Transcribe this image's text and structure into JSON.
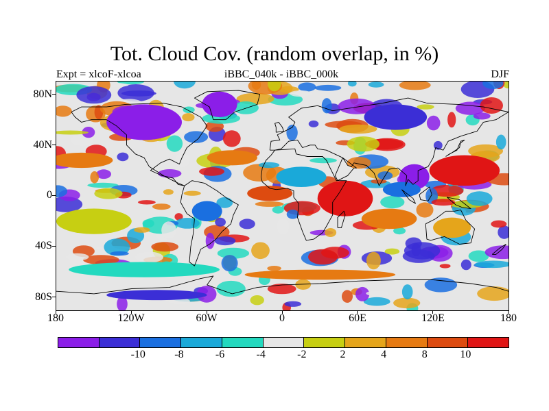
{
  "title": "Tot. Cloud Cov. (random overlap, in %)",
  "subtitle_left": "Expt = xlcoF-xlcoa",
  "subtitle_center": "iBBC_040k - iBBC_000k",
  "subtitle_right": "DJF",
  "map": {
    "projection": "cylindrical equidistant",
    "lon_range": [
      -180,
      180
    ],
    "lat_range": [
      -90,
      90
    ],
    "y_tick_labels": [
      "80N",
      "40N",
      "0",
      "40S",
      "80S"
    ],
    "y_tick_values": [
      80,
      40,
      0,
      -40,
      -80
    ],
    "x_tick_labels": [
      "180",
      "120W",
      "60W",
      "0",
      "60E",
      "120E",
      "180"
    ],
    "x_tick_values": [
      -180,
      -120,
      -60,
      0,
      60,
      120,
      180
    ]
  },
  "colorbar": {
    "colors": [
      "#8b1ee8",
      "#3b2ed6",
      "#1a6fe0",
      "#1aa9d9",
      "#23d9bf",
      "#e6e6e6",
      "#c7cf12",
      "#e5a51b",
      "#e67a12",
      "#dd4b10",
      "#e01515"
    ],
    "labels": [
      "-10",
      "-8",
      "-6",
      "-4",
      "-2",
      "2",
      "4",
      "8",
      "10"
    ],
    "label_boundaries": [
      1,
      2,
      3,
      4,
      5,
      6,
      7,
      8,
      9
    ]
  },
  "field_regions": [
    {
      "name": "north-america-negative",
      "level": 0,
      "lon": -110,
      "lat": 58,
      "rlon": 30,
      "rlat": 14
    },
    {
      "name": "greenland-negative",
      "level": 0,
      "lon": -50,
      "lat": 72,
      "rlon": 14,
      "rlat": 10
    },
    {
      "name": "siberia-negative",
      "level": 1,
      "lon": 90,
      "lat": 62,
      "rlon": 25,
      "rlat": 10
    },
    {
      "name": "east-asia-negative",
      "level": 0,
      "lon": 105,
      "lat": 15,
      "rlon": 12,
      "rlat": 10
    },
    {
      "name": "south-atlantic-positive",
      "level": 10,
      "lon": 50,
      "lat": -2,
      "rlon": 22,
      "rlat": 14
    },
    {
      "name": "west-pacific-positive",
      "level": 10,
      "lon": 145,
      "lat": 20,
      "rlon": 28,
      "rlat": 12
    },
    {
      "name": "north-pacific-orange",
      "level": 8,
      "lon": -160,
      "lat": 28,
      "rlon": 25,
      "rlat": 6
    },
    {
      "name": "atlantic-orange",
      "level": 8,
      "lon": -40,
      "lat": 30,
      "rlon": 20,
      "rlat": 6
    },
    {
      "name": "tropical-atlantic-orange",
      "level": 9,
      "lon": -10,
      "lat": 2,
      "rlon": 18,
      "rlat": 6
    },
    {
      "name": "india-orange",
      "level": 8,
      "lon": 85,
      "lat": -18,
      "rlon": 22,
      "rlat": 8
    },
    {
      "name": "amazon-negative",
      "level": 2,
      "lon": -60,
      "lat": -12,
      "rlon": 12,
      "rlat": 8
    },
    {
      "name": "africa-teal",
      "level": 3,
      "lon": 15,
      "lat": 15,
      "rlon": 20,
      "rlat": 8
    },
    {
      "name": "southern-ocean-teal",
      "level": 4,
      "lon": -110,
      "lat": -58,
      "rlon": 60,
      "rlat": 6
    },
    {
      "name": "southern-ocean-orange",
      "level": 8,
      "lon": 30,
      "lat": -62,
      "rlon": 60,
      "rlat": 4
    },
    {
      "name": "pacific-yellow",
      "level": 6,
      "lon": -150,
      "lat": -20,
      "rlon": 30,
      "rlat": 10
    },
    {
      "name": "antarctic-negative",
      "level": 1,
      "lon": -100,
      "lat": -78,
      "rlon": 40,
      "rlat": 4
    },
    {
      "name": "indian-ocean-blue",
      "level": 2,
      "lon": 95,
      "lat": 5,
      "rlon": 15,
      "rlat": 6
    },
    {
      "name": "australia-yellow",
      "level": 7,
      "lon": 135,
      "lat": -25,
      "rlon": 15,
      "rlat": 8
    }
  ],
  "coastlines": [
    {
      "name": "north-america",
      "points": [
        [
          -168,
          66
        ],
        [
          -160,
          70
        ],
        [
          -140,
          70
        ],
        [
          -125,
          72
        ],
        [
          -95,
          73
        ],
        [
          -80,
          70
        ],
        [
          -65,
          62
        ],
        [
          -60,
          55
        ],
        [
          -67,
          45
        ],
        [
          -76,
          38
        ],
        [
          -80,
          30
        ],
        [
          -82,
          25
        ],
        [
          -90,
          29
        ],
        [
          -97,
          26
        ],
        [
          -105,
          20
        ],
        [
          -96,
          16
        ],
        [
          -87,
          14
        ],
        [
          -83,
          9
        ],
        [
          -78,
          8
        ],
        [
          -85,
          11
        ],
        [
          -93,
          15
        ],
        [
          -106,
          23
        ],
        [
          -110,
          30
        ],
        [
          -117,
          33
        ],
        [
          -124,
          40
        ],
        [
          -124,
          48
        ],
        [
          -132,
          55
        ],
        [
          -140,
          60
        ],
        [
          -152,
          60
        ],
        [
          -160,
          58
        ],
        [
          -165,
          62
        ],
        [
          -168,
          66
        ]
      ]
    },
    {
      "name": "greenland",
      "points": [
        [
          -55,
          60
        ],
        [
          -45,
          60
        ],
        [
          -38,
          66
        ],
        [
          -20,
          72
        ],
        [
          -18,
          80
        ],
        [
          -35,
          83
        ],
        [
          -60,
          82
        ],
        [
          -70,
          77
        ],
        [
          -58,
          70
        ],
        [
          -55,
          60
        ]
      ]
    },
    {
      "name": "south-america",
      "points": [
        [
          -78,
          8
        ],
        [
          -72,
          12
        ],
        [
          -62,
          10
        ],
        [
          -52,
          4
        ],
        [
          -44,
          -2
        ],
        [
          -35,
          -7
        ],
        [
          -39,
          -15
        ],
        [
          -41,
          -22
        ],
        [
          -48,
          -28
        ],
        [
          -53,
          -34
        ],
        [
          -58,
          -38
        ],
        [
          -65,
          -42
        ],
        [
          -68,
          -50
        ],
        [
          -70,
          -55
        ],
        [
          -74,
          -52
        ],
        [
          -73,
          -40
        ],
        [
          -71,
          -30
        ],
        [
          -70,
          -18
        ],
        [
          -76,
          -14
        ],
        [
          -81,
          -5
        ],
        [
          -80,
          1
        ],
        [
          -78,
          8
        ]
      ]
    },
    {
      "name": "eurasia",
      "points": [
        [
          -10,
          36
        ],
        [
          -9,
          43
        ],
        [
          -2,
          44
        ],
        [
          -4,
          48
        ],
        [
          2,
          51
        ],
        [
          8,
          54
        ],
        [
          10,
          58
        ],
        [
          5,
          62
        ],
        [
          15,
          69
        ],
        [
          28,
          71
        ],
        [
          40,
          67
        ],
        [
          60,
          70
        ],
        [
          80,
          73
        ],
        [
          100,
          77
        ],
        [
          115,
          73
        ],
        [
          140,
          72
        ],
        [
          160,
          70
        ],
        [
          180,
          66
        ],
        [
          170,
          60
        ],
        [
          160,
          58
        ],
        [
          155,
          51
        ],
        [
          142,
          47
        ],
        [
          132,
          43
        ],
        [
          128,
          36
        ],
        [
          122,
          38
        ],
        [
          120,
          30
        ],
        [
          116,
          23
        ],
        [
          108,
          20
        ],
        [
          108,
          12
        ],
        [
          104,
          9
        ],
        [
          100,
          13
        ],
        [
          98,
          8
        ],
        [
          99,
          16
        ],
        [
          92,
          22
        ],
        [
          85,
          21
        ],
        [
          80,
          13
        ],
        [
          77,
          8
        ],
        [
          73,
          18
        ],
        [
          67,
          24
        ],
        [
          57,
          26
        ],
        [
          55,
          23
        ],
        [
          52,
          24
        ],
        [
          48,
          30
        ],
        [
          42,
          16
        ],
        [
          44,
          12
        ],
        [
          52,
          16
        ],
        [
          57,
          22
        ],
        [
          59,
          22
        ],
        [
          48,
          30
        ],
        [
          35,
          36
        ],
        [
          28,
          37
        ],
        [
          26,
          40
        ],
        [
          22,
          40
        ],
        [
          16,
          38
        ],
        [
          12,
          44
        ],
        [
          5,
          43
        ],
        [
          -1,
          37
        ],
        [
          -6,
          36
        ],
        [
          -10,
          36
        ]
      ]
    },
    {
      "name": "africa",
      "points": [
        [
          -6,
          36
        ],
        [
          10,
          37
        ],
        [
          11,
          33
        ],
        [
          20,
          31
        ],
        [
          32,
          31
        ],
        [
          35,
          28
        ],
        [
          43,
          12
        ],
        [
          51,
          12
        ],
        [
          45,
          2
        ],
        [
          40,
          -5
        ],
        [
          40,
          -15
        ],
        [
          35,
          -24
        ],
        [
          32,
          -29
        ],
        [
          25,
          -34
        ],
        [
          19,
          -35
        ],
        [
          16,
          -28
        ],
        [
          12,
          -17
        ],
        [
          13,
          -6
        ],
        [
          9,
          -1
        ],
        [
          9,
          4
        ],
        [
          4,
          6
        ],
        [
          -5,
          5
        ],
        [
          -10,
          6
        ],
        [
          -16,
          11
        ],
        [
          -17,
          15
        ],
        [
          -16,
          22
        ],
        [
          -13,
          28
        ],
        [
          -9,
          32
        ],
        [
          -6,
          36
        ]
      ]
    },
    {
      "name": "australia",
      "points": [
        [
          114,
          -22
        ],
        [
          122,
          -18
        ],
        [
          130,
          -12
        ],
        [
          137,
          -12
        ],
        [
          142,
          -11
        ],
        [
          146,
          -19
        ],
        [
          153,
          -26
        ],
        [
          150,
          -37
        ],
        [
          141,
          -38
        ],
        [
          135,
          -35
        ],
        [
          129,
          -32
        ],
        [
          118,
          -35
        ],
        [
          115,
          -34
        ],
        [
          114,
          -22
        ]
      ]
    },
    {
      "name": "antarctica",
      "points": [
        [
          -180,
          -75
        ],
        [
          -150,
          -77
        ],
        [
          -120,
          -73
        ],
        [
          -90,
          -72
        ],
        [
          -65,
          -65
        ],
        [
          -55,
          -63
        ],
        [
          -60,
          -70
        ],
        [
          -40,
          -77
        ],
        [
          -20,
          -72
        ],
        [
          0,
          -70
        ],
        [
          30,
          -69
        ],
        [
          60,
          -67
        ],
        [
          90,
          -66
        ],
        [
          120,
          -66
        ],
        [
          150,
          -69
        ],
        [
          170,
          -72
        ],
        [
          180,
          -75
        ]
      ]
    },
    {
      "name": "madagascar",
      "points": [
        [
          44,
          -25
        ],
        [
          47,
          -25
        ],
        [
          50,
          -15
        ],
        [
          49,
          -12
        ],
        [
          44,
          -17
        ],
        [
          44,
          -25
        ]
      ]
    },
    {
      "name": "japan",
      "points": [
        [
          130,
          31
        ],
        [
          135,
          34
        ],
        [
          141,
          38
        ],
        [
          142,
          43
        ],
        [
          145,
          44
        ],
        [
          141,
          41
        ],
        [
          139,
          36
        ],
        [
          133,
          33
        ],
        [
          130,
          31
        ]
      ]
    },
    {
      "name": "uk",
      "points": [
        [
          -5,
          50
        ],
        [
          1,
          51
        ],
        [
          0,
          54
        ],
        [
          -3,
          58
        ],
        [
          -6,
          57
        ],
        [
          -5,
          54
        ],
        [
          -5,
          50
        ]
      ]
    },
    {
      "name": "borneo",
      "points": [
        [
          109,
          1
        ],
        [
          117,
          7
        ],
        [
          119,
          1
        ],
        [
          116,
          -4
        ],
        [
          110,
          -3
        ],
        [
          109,
          1
        ]
      ]
    },
    {
      "name": "sumatra",
      "points": [
        [
          95,
          5
        ],
        [
          104,
          -2
        ],
        [
          106,
          -6
        ],
        [
          101,
          -3
        ],
        [
          95,
          5
        ]
      ]
    },
    {
      "name": "new-guinea",
      "points": [
        [
          131,
          -1
        ],
        [
          141,
          -3
        ],
        [
          150,
          -10
        ],
        [
          143,
          -9
        ],
        [
          138,
          -7
        ],
        [
          131,
          -1
        ]
      ]
    },
    {
      "name": "new-zealand",
      "points": [
        [
          167,
          -46
        ],
        [
          173,
          -41
        ],
        [
          178,
          -38
        ],
        [
          175,
          -42
        ],
        [
          170,
          -46
        ],
        [
          167,
          -46
        ]
      ]
    }
  ]
}
